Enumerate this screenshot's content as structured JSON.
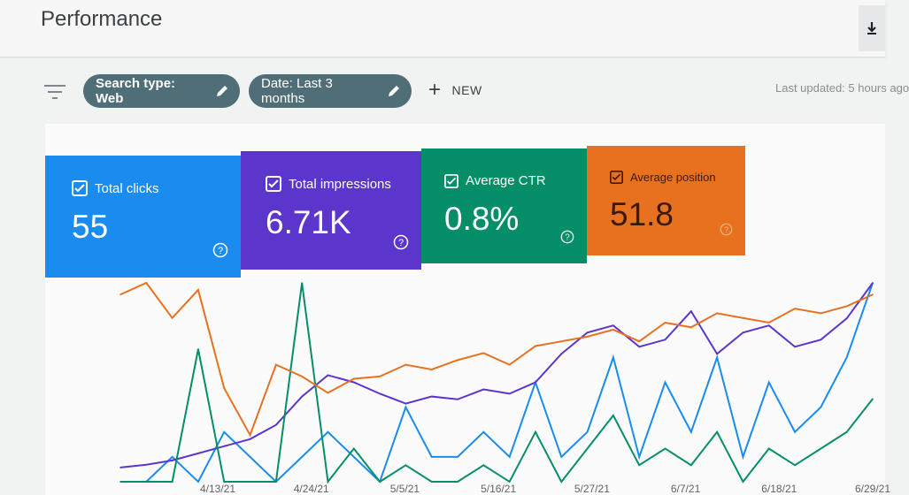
{
  "header": {
    "title": "Performance",
    "download_icon": "download-icon"
  },
  "filters": {
    "filter_icon": "filter-icon",
    "search_type": "Search type: Web",
    "date": "Date: Last 3 months",
    "new_label": "NEW",
    "last_updated": "Last updated: 5 hours ago"
  },
  "metrics": [
    {
      "label": "Total clicks",
      "value": "55",
      "color": "#1a8cf0"
    },
    {
      "label": "Total impressions",
      "value": "6.71K",
      "color": "#5c35cc"
    },
    {
      "label": "Average CTR",
      "value": "0.8%",
      "color": "#068e68"
    },
    {
      "label": "Average position",
      "value": "51.8",
      "color": "#e8711f"
    }
  ],
  "chart_data": {
    "type": "line",
    "x": [
      "4/2/21",
      "4/5/21",
      "4/8/21",
      "4/11/21",
      "4/14/21",
      "4/17/21",
      "4/20/21",
      "4/23/21",
      "4/26/21",
      "4/29/21",
      "5/2/21",
      "5/5/21",
      "5/8/21",
      "5/11/21",
      "5/14/21",
      "5/17/21",
      "5/20/21",
      "5/23/21",
      "5/26/21",
      "5/29/21",
      "6/1/21",
      "6/4/21",
      "6/7/21",
      "6/10/21",
      "6/13/21",
      "6/16/21",
      "6/19/21",
      "6/22/21",
      "6/25/21",
      "6/28/21"
    ],
    "xtick_labels": [
      "4/13/21",
      "4/24/21",
      "5/5/21",
      "5/16/21",
      "5/27/21",
      "6/7/21",
      "6/18/21",
      "6/29/21"
    ],
    "series": [
      {
        "name": "Total clicks",
        "color": "#1a8cf0",
        "values": [
          0,
          0,
          1,
          0,
          2,
          1,
          0,
          1,
          2,
          1,
          0,
          3,
          1,
          1,
          2,
          1,
          4,
          1,
          2,
          5,
          1,
          4,
          2,
          5,
          1,
          4,
          2,
          3,
          5,
          8
        ]
      },
      {
        "name": "Total impressions",
        "color": "#5c35cc",
        "values": [
          10,
          12,
          15,
          20,
          25,
          30,
          40,
          60,
          75,
          70,
          62,
          55,
          60,
          58,
          65,
          62,
          70,
          90,
          105,
          110,
          95,
          100,
          120,
          90,
          105,
          110,
          95,
          100,
          115,
          140
        ]
      },
      {
        "name": "Average CTR",
        "color": "#068e68",
        "values": [
          0,
          0,
          0,
          8,
          0,
          0,
          0,
          12,
          0,
          2,
          0,
          1,
          0,
          0,
          1,
          0,
          3,
          0,
          2,
          4,
          1,
          2,
          1,
          3,
          0,
          2,
          1,
          2,
          3,
          5
        ]
      },
      {
        "name": "Average position",
        "color": "#e8711f",
        "values": [
          80,
          85,
          70,
          82,
          40,
          20,
          50,
          45,
          38,
          44,
          45,
          50,
          48,
          52,
          55,
          50,
          58,
          60,
          62,
          65,
          60,
          68,
          66,
          72,
          70,
          68,
          74,
          72,
          75,
          80
        ]
      }
    ]
  }
}
